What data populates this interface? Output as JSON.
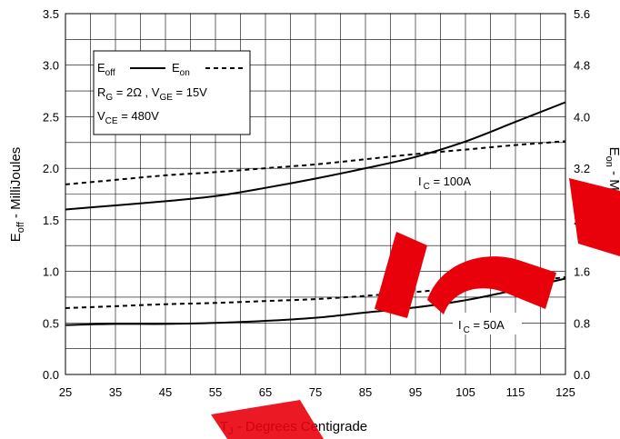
{
  "chart_data": {
    "type": "line",
    "title": "",
    "xlabel": {
      "main": "T",
      "sub": "J",
      "rest": " - Degrees Centigrade"
    },
    "ylabel_left": {
      "main": "E",
      "sub": "off",
      "rest": " - MilliJoules"
    },
    "ylabel_right": {
      "main": "E",
      "sub": "on",
      "rest": " - MilliJoules"
    },
    "xlim": [
      25,
      125
    ],
    "ylim_left": [
      0,
      3.5
    ],
    "ylim_right": [
      0,
      5.6
    ],
    "x_ticks": [
      "25",
      "35",
      "45",
      "55",
      "65",
      "75",
      "85",
      "95",
      "105",
      "115",
      "125"
    ],
    "y_ticks_left": [
      "0.0",
      "0.5",
      "1.0",
      "1.5",
      "2.0",
      "2.5",
      "3.0",
      "3.5"
    ],
    "y_ticks_right": [
      "0.0",
      "0.8",
      "1.6",
      "2.4",
      "3.2",
      "4.0",
      "4.8",
      "5.6"
    ],
    "grid": true,
    "legend": {
      "placement": "top-left",
      "eoff": {
        "main": "E",
        "sub": "off"
      },
      "eon": {
        "main": "E",
        "sub": "on"
      },
      "conditions_line1": {
        "a_main": "R",
        "a_sub": "G",
        "a_rest": " = 2Ω ,  ",
        "b_main": "V",
        "b_sub": "GE",
        "b_rest": " = 15V"
      },
      "conditions_line2": {
        "main": "V",
        "sub": "CE",
        "rest": " = 480V"
      }
    },
    "annotations": [
      {
        "main": "I",
        "sub": "C",
        "rest": " = 100A"
      },
      {
        "main": "I",
        "sub": "C",
        "rest": " = 50A"
      }
    ],
    "series": [
      {
        "axis": "left",
        "style": "solid",
        "x": [
          25,
          35,
          45,
          55,
          65,
          75,
          85,
          95,
          105,
          115,
          125
        ],
        "values": [
          1.6,
          1.64,
          1.68,
          1.73,
          1.81,
          1.9,
          2.0,
          2.11,
          2.26,
          2.45,
          2.64
        ]
      },
      {
        "axis": "right",
        "style": "dashed",
        "x": [
          25,
          35,
          45,
          55,
          65,
          75,
          85,
          95,
          105,
          115,
          125
        ],
        "values": [
          2.95,
          3.02,
          3.09,
          3.14,
          3.2,
          3.26,
          3.34,
          3.42,
          3.49,
          3.56,
          3.62
        ]
      },
      {
        "axis": "left",
        "style": "solid",
        "x": [
          25,
          35,
          45,
          55,
          65,
          75,
          85,
          95,
          105,
          115,
          125
        ],
        "values": [
          0.48,
          0.49,
          0.49,
          0.5,
          0.52,
          0.55,
          0.6,
          0.65,
          0.72,
          0.82,
          0.93
        ]
      },
      {
        "axis": "right",
        "style": "dashed",
        "x": [
          25,
          35,
          45,
          55,
          65,
          75,
          85,
          95,
          105,
          115,
          125
        ],
        "values": [
          1.03,
          1.06,
          1.09,
          1.11,
          1.14,
          1.17,
          1.22,
          1.28,
          1.35,
          1.42,
          1.51
        ]
      }
    ],
    "colors": {
      "line": "#000000",
      "grid": "#000000",
      "watermark": "#e8000b"
    }
  }
}
